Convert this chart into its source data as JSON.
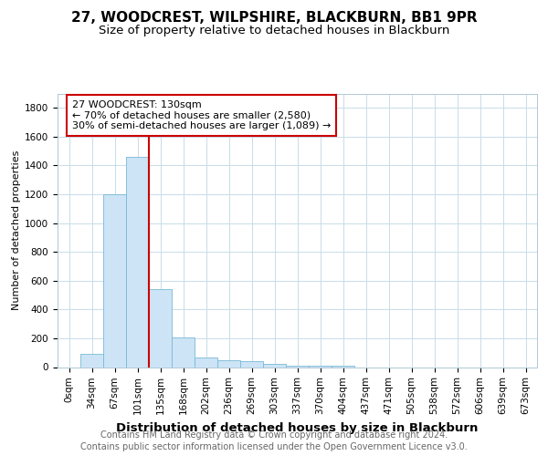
{
  "title": "27, WOODCREST, WILPSHIRE, BLACKBURN, BB1 9PR",
  "subtitle": "Size of property relative to detached houses in Blackburn",
  "xlabel": "Distribution of detached houses by size in Blackburn",
  "ylabel": "Number of detached properties",
  "categories": [
    "0sqm",
    "34sqm",
    "67sqm",
    "101sqm",
    "135sqm",
    "168sqm",
    "202sqm",
    "236sqm",
    "269sqm",
    "303sqm",
    "337sqm",
    "370sqm",
    "404sqm",
    "437sqm",
    "471sqm",
    "505sqm",
    "538sqm",
    "572sqm",
    "606sqm",
    "639sqm",
    "673sqm"
  ],
  "values": [
    0,
    90,
    1200,
    1460,
    540,
    205,
    65,
    45,
    40,
    25,
    10,
    10,
    10,
    0,
    0,
    0,
    0,
    0,
    0,
    0,
    0
  ],
  "bar_color": "#cce4f5",
  "bar_edge_color": "#7ab8d8",
  "red_line_index": 4,
  "annotation_line1": "27 WOODCREST: 130sqm",
  "annotation_line2": "← 70% of detached houses are smaller (2,580)",
  "annotation_line3": "30% of semi-detached houses are larger (1,089) →",
  "annotation_box_color": "#ffffff",
  "annotation_box_edge_color": "#cc0000",
  "ylim": [
    0,
    1900
  ],
  "yticks": [
    0,
    200,
    400,
    600,
    800,
    1000,
    1200,
    1400,
    1600,
    1800
  ],
  "footer_text": "Contains HM Land Registry data © Crown copyright and database right 2024.\nContains public sector information licensed under the Open Government Licence v3.0.",
  "title_fontsize": 11,
  "subtitle_fontsize": 9.5,
  "xlabel_fontsize": 9.5,
  "ylabel_fontsize": 8,
  "tick_fontsize": 7.5,
  "annotation_fontsize": 8,
  "footer_fontsize": 7,
  "bg_color": "#ffffff",
  "grid_color": "#c8dce8",
  "red_line_color": "#cc0000"
}
